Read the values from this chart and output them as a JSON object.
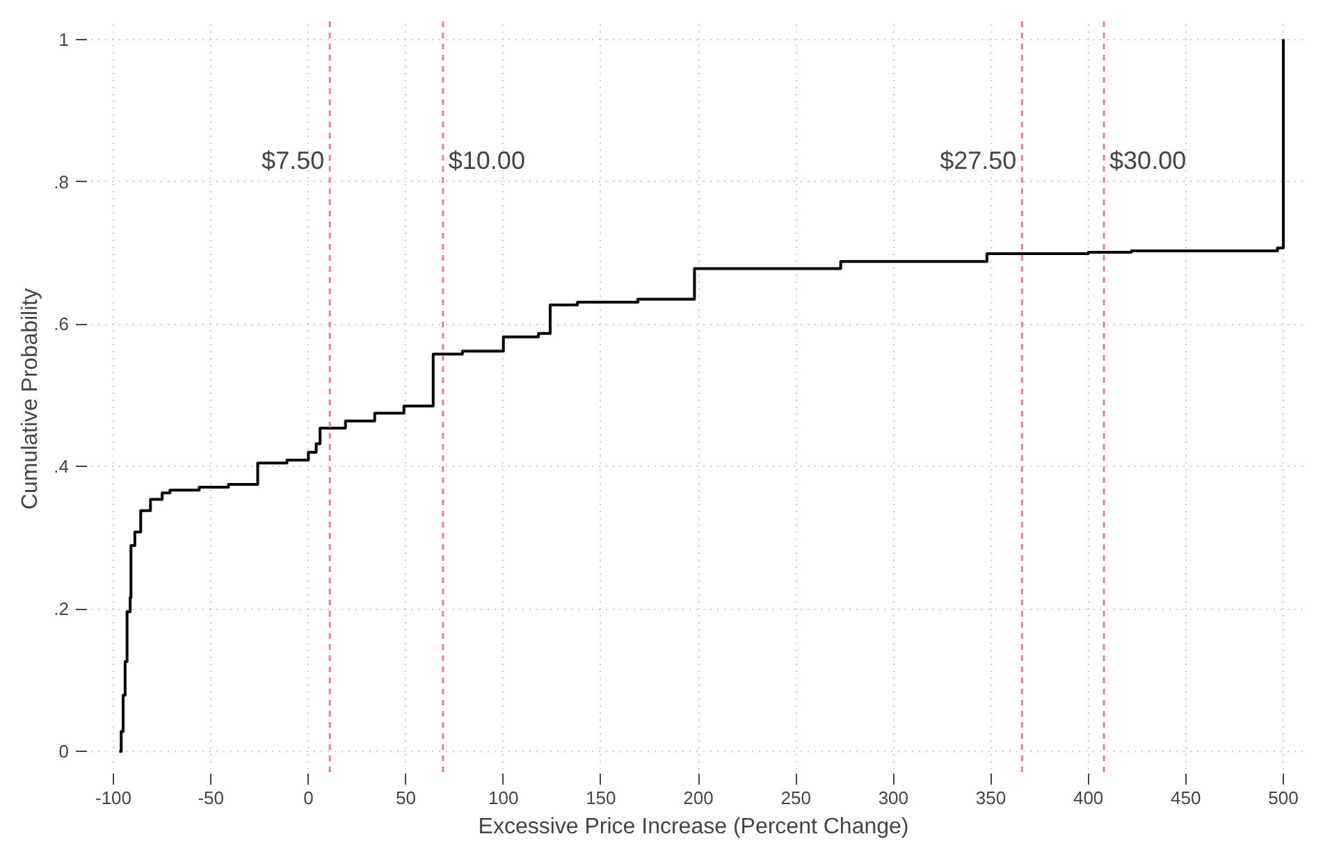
{
  "chart_data": {
    "type": "step",
    "xlabel": "Excessive Price Increase (Percent Change)",
    "ylabel": "Cumulative Probability",
    "x": [
      -97,
      -96,
      -95,
      -94,
      -93,
      -91.4,
      -91,
      -89,
      -86,
      -81,
      -75,
      -71,
      -56,
      -41,
      -26,
      -11,
      0,
      4,
      6,
      19,
      34,
      49,
      64,
      79,
      100,
      118,
      124,
      138,
      169,
      198,
      273,
      348,
      400,
      422,
      497,
      500
    ],
    "series": [
      {
        "color": "#000000",
        "values": [
          0,
          0.028,
          0.079,
          0.126,
          0.196,
          0.216,
          0.289,
          0.308,
          0.338,
          0.354,
          0.363,
          0.367,
          0.371,
          0.375,
          0.405,
          0.409,
          0.42,
          0.432,
          0.454,
          0.464,
          0.475,
          0.485,
          0.558,
          0.562,
          0.582,
          0.587,
          0.627,
          0.631,
          0.635,
          0.678,
          0.688,
          0.699,
          0.701,
          0.703,
          0.707,
          1
        ]
      }
    ],
    "xlim": [
      -115,
      510
    ],
    "ylim": [
      -0.035,
      1.025
    ],
    "xticks": [
      -100,
      -50,
      0,
      50,
      100,
      150,
      200,
      250,
      300,
      350,
      400,
      450,
      500
    ],
    "yticks": [
      0,
      {
        "value": 0.2,
        "label": ".2"
      },
      {
        "value": 0.4,
        "label": ".4"
      },
      {
        "value": 0.6,
        "label": ".6"
      },
      {
        "value": 0.8,
        "label": ".8"
      },
      1
    ],
    "grid": true,
    "ref_lines": [
      {
        "axis": "x",
        "value": 11,
        "color": "#d9829f",
        "line_style": "dashed"
      },
      {
        "axis": "x",
        "value": 69,
        "color": "#d9829f",
        "line_style": "dashed"
      },
      {
        "axis": "x",
        "value": 366,
        "color": "#d9829f",
        "line_style": "dashed"
      },
      {
        "axis": "x",
        "value": 408,
        "color": "#d9829f",
        "line_style": "dashed"
      }
    ],
    "annotations": [
      {
        "text": "$7.50",
        "x": 11,
        "y": 0.83
      },
      {
        "text": "$10.00",
        "x": 69,
        "y": 0.83
      },
      {
        "text": "$27.50",
        "x": 366,
        "y": 0.83
      },
      {
        "text": "$30.00",
        "x": 408,
        "y": 0.83
      }
    ]
  }
}
